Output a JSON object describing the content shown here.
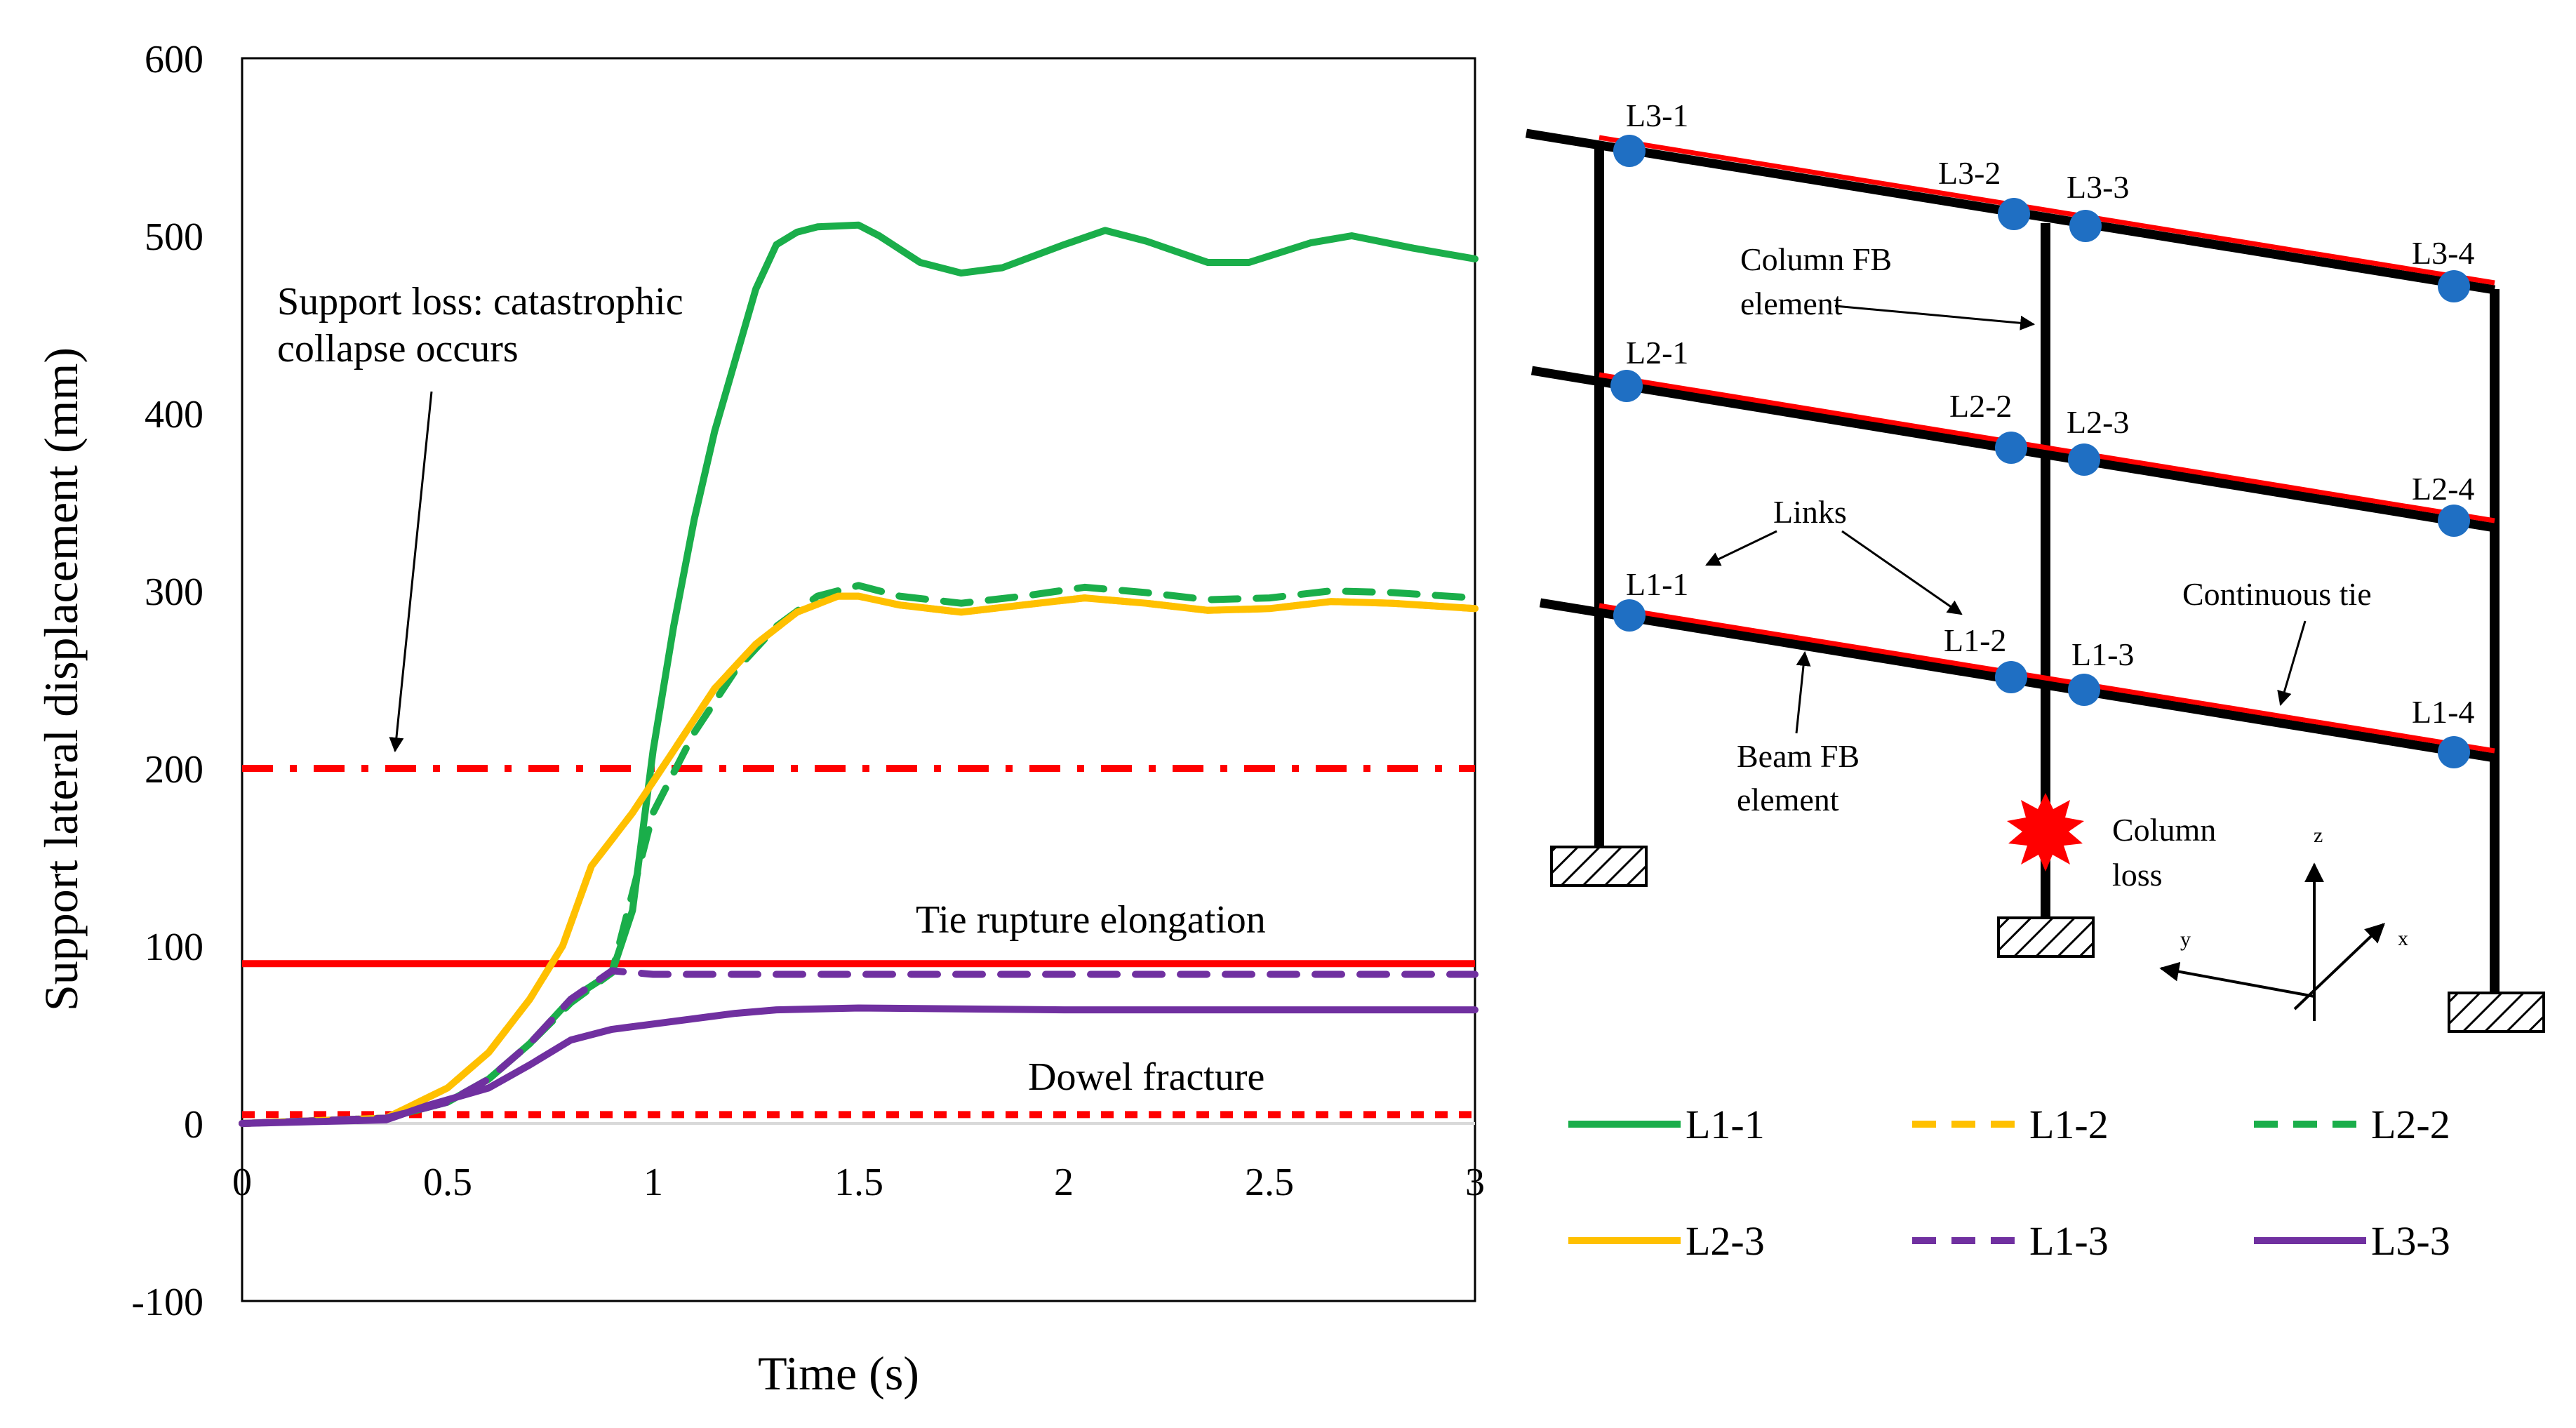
{
  "chart_data": {
    "type": "line",
    "title": "",
    "xlabel": "Time (s)",
    "ylabel": "Support lateral displacement (mm)",
    "xlim": [
      0,
      3
    ],
    "ylim": [
      -100,
      600
    ],
    "x_ticks": [
      "0",
      "0.5",
      "1",
      "1.5",
      "2",
      "2.5",
      "3"
    ],
    "y_ticks": [
      "-100",
      "0",
      "100",
      "200",
      "300",
      "400",
      "500",
      "600"
    ],
    "grid": false,
    "series": [
      {
        "name": "L1-1",
        "color": "#1aae4a",
        "dash": "solid",
        "points": [
          [
            0,
            0
          ],
          [
            0.35,
            3
          ],
          [
            0.5,
            12
          ],
          [
            0.6,
            25
          ],
          [
            0.7,
            45
          ],
          [
            0.8,
            70
          ],
          [
            0.9,
            85
          ],
          [
            0.95,
            120
          ],
          [
            1.0,
            210
          ],
          [
            1.05,
            280
          ],
          [
            1.1,
            340
          ],
          [
            1.15,
            390
          ],
          [
            1.2,
            430
          ],
          [
            1.25,
            470
          ],
          [
            1.3,
            495
          ],
          [
            1.35,
            502
          ],
          [
            1.4,
            505
          ],
          [
            1.5,
            506
          ],
          [
            1.55,
            500
          ],
          [
            1.65,
            485
          ],
          [
            1.75,
            479
          ],
          [
            1.85,
            482
          ],
          [
            2.0,
            495
          ],
          [
            2.1,
            503
          ],
          [
            2.2,
            497
          ],
          [
            2.35,
            485
          ],
          [
            2.45,
            485
          ],
          [
            2.6,
            496
          ],
          [
            2.7,
            500
          ],
          [
            2.85,
            493
          ],
          [
            3.0,
            487
          ]
        ]
      },
      {
        "name": "L1-2",
        "color": "#ffc000",
        "dash": "dashed",
        "points": [
          [
            0,
            0
          ],
          [
            0.35,
            3
          ],
          [
            0.5,
            20
          ],
          [
            0.6,
            40
          ],
          [
            0.7,
            70
          ],
          [
            0.78,
            100
          ],
          [
            0.85,
            145
          ],
          [
            0.95,
            175
          ],
          [
            1.05,
            210
          ],
          [
            1.15,
            245
          ],
          [
            1.25,
            270
          ],
          [
            1.35,
            288
          ],
          [
            1.45,
            297
          ],
          [
            1.5,
            297
          ],
          [
            1.6,
            292
          ],
          [
            1.75,
            288
          ],
          [
            1.9,
            292
          ],
          [
            2.05,
            296
          ],
          [
            2.2,
            293
          ],
          [
            2.35,
            289
          ],
          [
            2.5,
            290
          ],
          [
            2.65,
            294
          ],
          [
            2.8,
            293
          ],
          [
            3.0,
            290
          ]
        ]
      },
      {
        "name": "L2-2",
        "color": "#1aae4a",
        "dash": "dashed",
        "points": [
          [
            0,
            0
          ],
          [
            0.35,
            3
          ],
          [
            0.5,
            12
          ],
          [
            0.6,
            25
          ],
          [
            0.7,
            45
          ],
          [
            0.8,
            68
          ],
          [
            0.9,
            85
          ],
          [
            1.0,
            175
          ],
          [
            1.1,
            220
          ],
          [
            1.2,
            255
          ],
          [
            1.3,
            280
          ],
          [
            1.4,
            297
          ],
          [
            1.5,
            303
          ],
          [
            1.6,
            297
          ],
          [
            1.75,
            293
          ],
          [
            1.9,
            297
          ],
          [
            2.05,
            302
          ],
          [
            2.2,
            299
          ],
          [
            2.35,
            295
          ],
          [
            2.5,
            296
          ],
          [
            2.65,
            300
          ],
          [
            2.8,
            299
          ],
          [
            3.0,
            296
          ]
        ]
      },
      {
        "name": "L2-3",
        "color": "#ffc000",
        "dash": "solid",
        "points": [
          [
            0,
            0
          ],
          [
            0.35,
            3
          ],
          [
            0.5,
            20
          ],
          [
            0.6,
            40
          ],
          [
            0.7,
            70
          ],
          [
            0.78,
            100
          ],
          [
            0.85,
            145
          ],
          [
            0.95,
            175
          ],
          [
            1.05,
            210
          ],
          [
            1.15,
            245
          ],
          [
            1.25,
            270
          ],
          [
            1.35,
            288
          ],
          [
            1.45,
            297
          ],
          [
            1.5,
            297
          ],
          [
            1.6,
            292
          ],
          [
            1.75,
            288
          ],
          [
            1.9,
            292
          ],
          [
            2.05,
            296
          ],
          [
            2.2,
            293
          ],
          [
            2.35,
            289
          ],
          [
            2.5,
            290
          ],
          [
            2.65,
            294
          ],
          [
            2.8,
            293
          ],
          [
            3.0,
            290
          ]
        ]
      },
      {
        "name": "L1-3",
        "color": "#7030a0",
        "dash": "dashed",
        "points": [
          [
            0,
            0
          ],
          [
            0.35,
            3
          ],
          [
            0.5,
            12
          ],
          [
            0.6,
            25
          ],
          [
            0.7,
            45
          ],
          [
            0.8,
            70
          ],
          [
            0.9,
            86
          ],
          [
            1.0,
            84
          ],
          [
            1.2,
            84
          ],
          [
            1.5,
            84
          ],
          [
            2.0,
            84
          ],
          [
            2.5,
            84
          ],
          [
            3.0,
            84
          ]
        ]
      },
      {
        "name": "L3-3",
        "color": "#7030a0",
        "dash": "solid",
        "points": [
          [
            0,
            0
          ],
          [
            0.35,
            2
          ],
          [
            0.45,
            10
          ],
          [
            0.6,
            20
          ],
          [
            0.7,
            33
          ],
          [
            0.8,
            47
          ],
          [
            0.9,
            53
          ],
          [
            1.0,
            56
          ],
          [
            1.1,
            59
          ],
          [
            1.2,
            62
          ],
          [
            1.3,
            64
          ],
          [
            1.5,
            65
          ],
          [
            2.0,
            64
          ],
          [
            2.5,
            64
          ],
          [
            3.0,
            64
          ]
        ]
      }
    ],
    "reference_lines": [
      {
        "name": "support-loss",
        "y": 200,
        "color": "#ff0000",
        "dash": "dashdot"
      },
      {
        "name": "tie-rupture",
        "y": 90,
        "color": "#ff0000",
        "dash": "solid"
      },
      {
        "name": "dowel-fracture",
        "y": 5,
        "color": "#ff0000",
        "dash": "dotted"
      },
      {
        "name": "zero",
        "y": 0,
        "color": "#d9d9d9",
        "dash": "solid"
      }
    ],
    "annotations": {
      "support_loss": [
        "Support loss: catastrophic",
        "collapse occurs"
      ],
      "tie_rupture": "Tie rupture elongation",
      "dowel_fracture": "Dowel fracture"
    },
    "legend": {
      "placement": "bottom-right",
      "entries": [
        {
          "label": "L1-1",
          "color": "#1aae4a",
          "dash": "solid"
        },
        {
          "label": "L1-2",
          "color": "#ffc000",
          "dash": "dashed"
        },
        {
          "label": "L2-2",
          "color": "#1aae4a",
          "dash": "dashed"
        },
        {
          "label": "L2-3",
          "color": "#ffc000",
          "dash": "solid"
        },
        {
          "label": "L1-3",
          "color": "#7030a0",
          "dash": "dashed"
        },
        {
          "label": "L3-3",
          "color": "#7030a0",
          "dash": "solid"
        }
      ]
    }
  },
  "schematic": {
    "link_labels": [
      "L3-1",
      "L3-2",
      "L3-3",
      "L3-4",
      "L2-1",
      "L2-2",
      "L2-3",
      "L2-4",
      "L1-1",
      "L1-2",
      "L1-3",
      "L1-4"
    ],
    "column_fb": [
      "Column FB",
      "element"
    ],
    "links": "Links",
    "continuous_tie": "Continuous tie",
    "beam_fb": [
      "Beam FB",
      "element"
    ],
    "column_loss": [
      "Column",
      "loss"
    ],
    "axes": {
      "z": "z",
      "y": "y",
      "x": "x"
    },
    "colors": {
      "frame": "#000000",
      "tie": "#ff0000",
      "node": "#1f6fc3",
      "loss": "#ff0000"
    }
  }
}
